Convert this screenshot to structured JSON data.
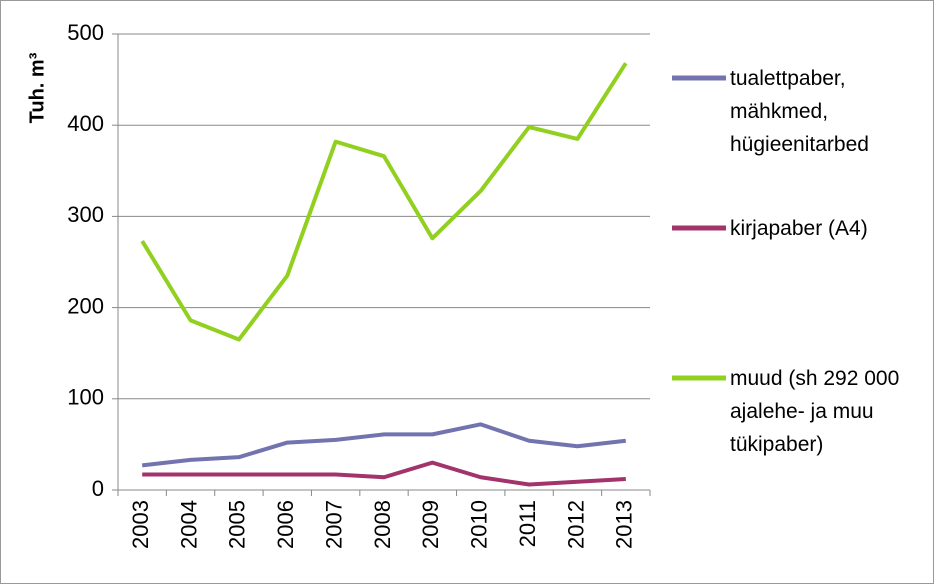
{
  "chart_data": {
    "type": "line",
    "ylabel": "Tuh. m³",
    "categories": [
      "2003",
      "2004",
      "2005",
      "2006",
      "2007",
      "2008",
      "2009",
      "2010",
      "2011",
      "2012",
      "2013"
    ],
    "series": [
      {
        "name": "tualettpaber, mähkmed, hügieenitarbed",
        "color": "#7373b0",
        "values": [
          27,
          33,
          36,
          52,
          55,
          61,
          61,
          72,
          54,
          48,
          54
        ]
      },
      {
        "name": "kirjapaber (A4)",
        "color": "#a3336b",
        "values": [
          17,
          17,
          17,
          17,
          17,
          14,
          30,
          14,
          6,
          9,
          12
        ]
      },
      {
        "name": "muud (sh 292 000 ajalehe- ja muu tükipaber)",
        "color": "#92d020",
        "values": [
          273,
          186,
          165,
          235,
          382,
          366,
          276,
          328,
          398,
          385,
          468
        ]
      }
    ],
    "ylim": [
      0,
      500
    ],
    "yticks": [
      0,
      100,
      200,
      300,
      400,
      500
    ],
    "grid": true,
    "legend": "right"
  }
}
